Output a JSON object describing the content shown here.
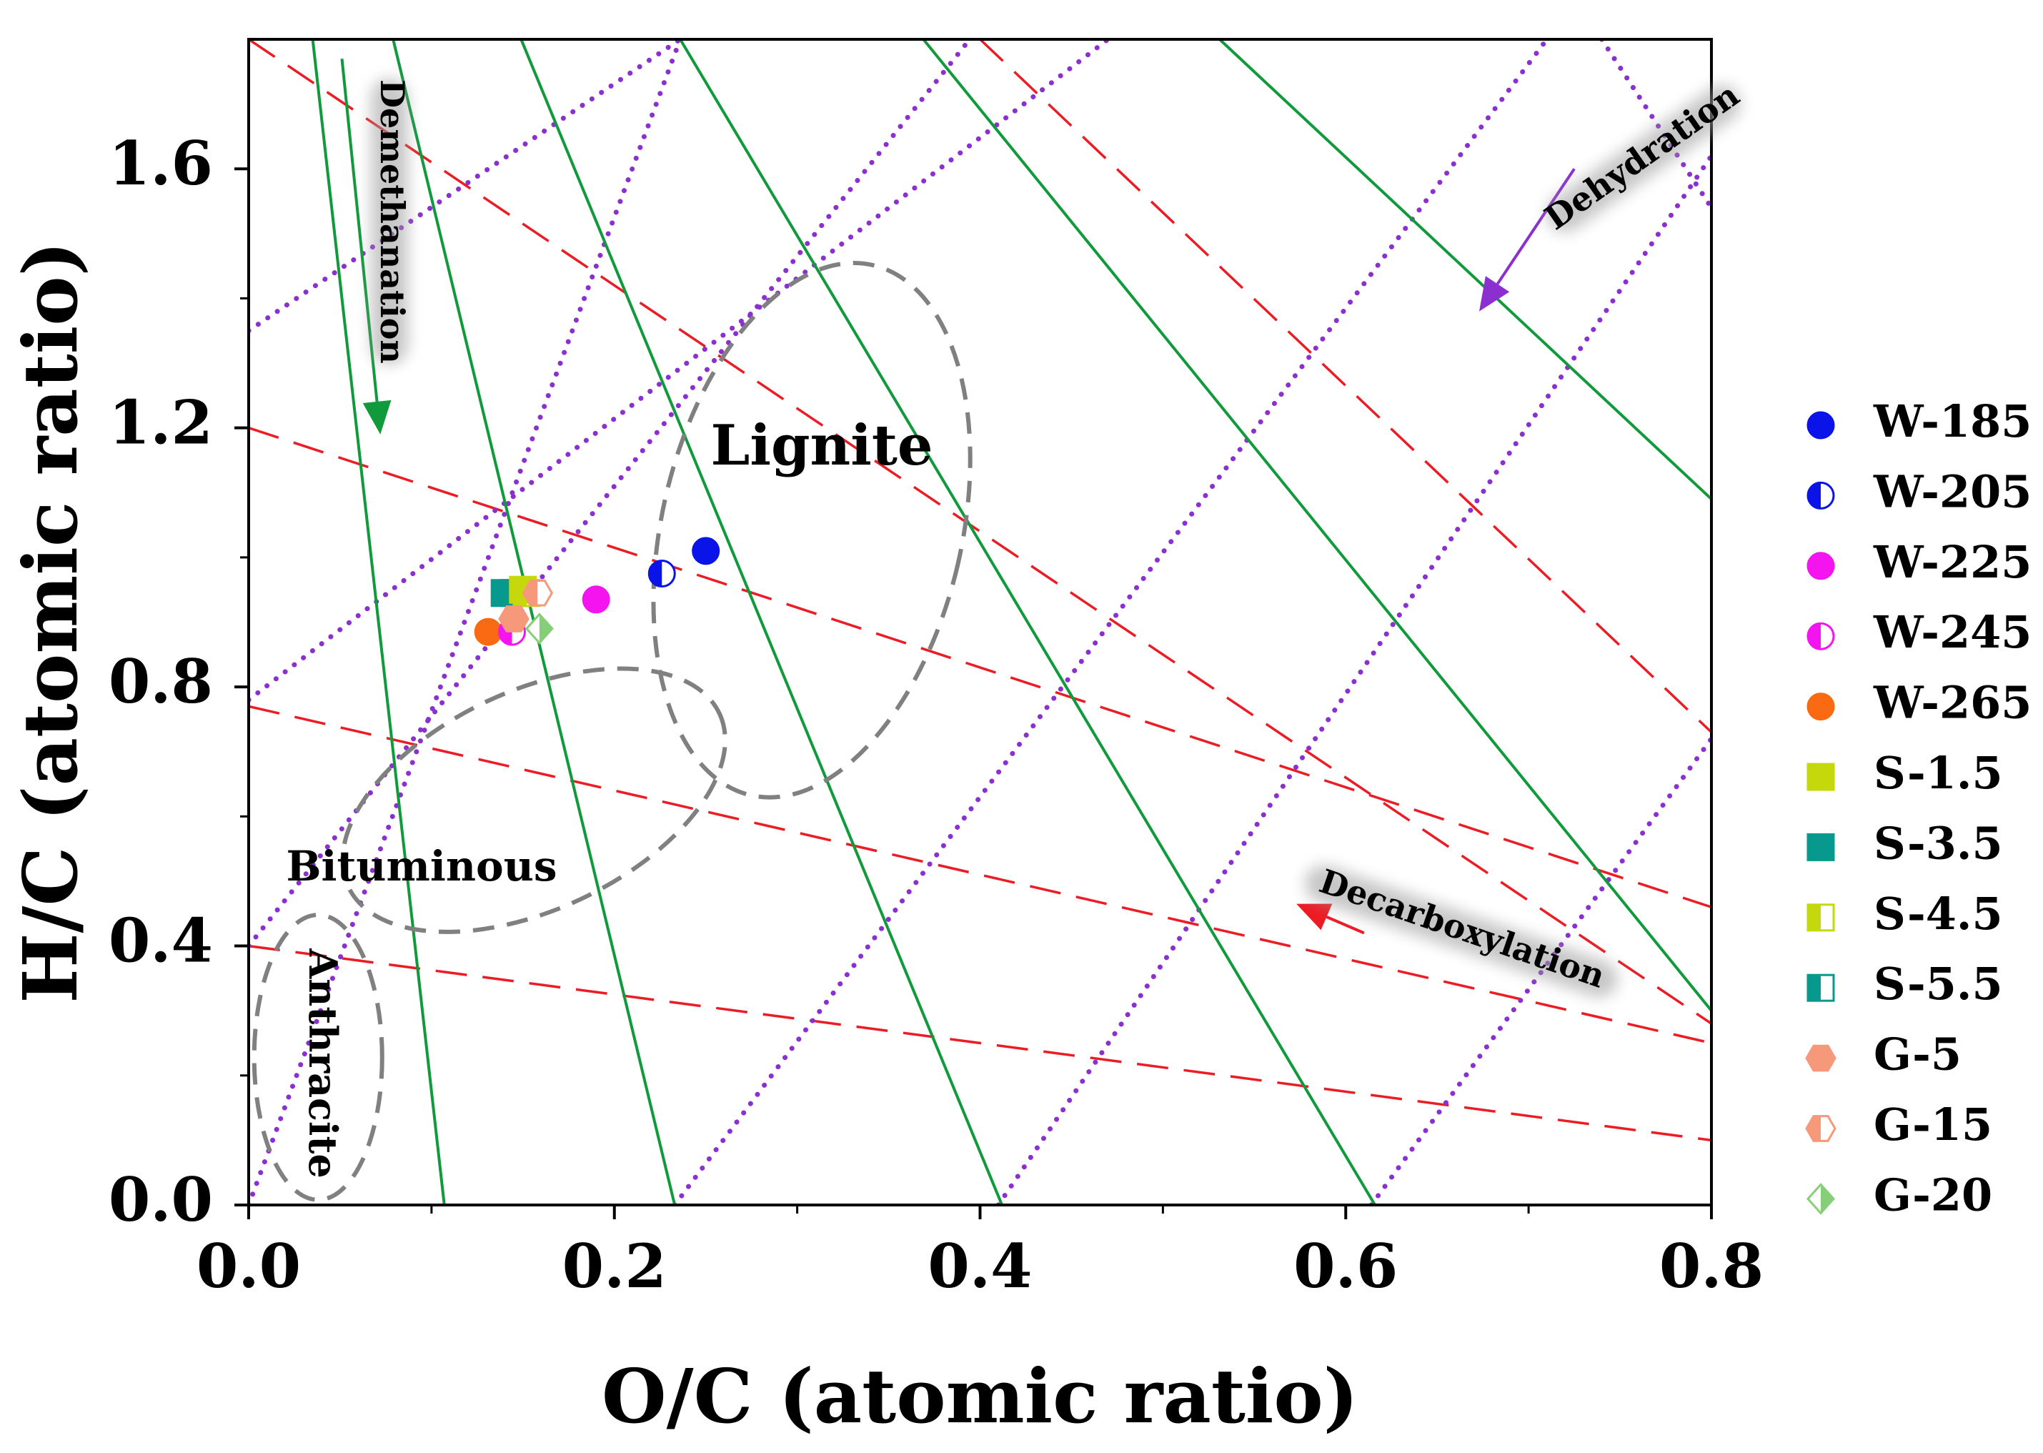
{
  "chart_data": {
    "type": "scatter",
    "title": "",
    "xlabel": "O/C (atomic ratio)",
    "ylabel": "H/C (atomic ratio)",
    "xlim": [
      0.0,
      0.8
    ],
    "ylim": [
      0.0,
      1.8
    ],
    "xticks": [
      "0.0",
      "0.2",
      "0.4",
      "0.6",
      "0.8"
    ],
    "yticks": [
      "0.0",
      "0.4",
      "0.8",
      "1.2",
      "1.6"
    ],
    "xtick_values": [
      0.0,
      0.2,
      0.4,
      0.6,
      0.8
    ],
    "ytick_values": [
      0.0,
      0.4,
      0.8,
      1.2,
      1.6
    ],
    "xminor": [
      0.1,
      0.3,
      0.5,
      0.7
    ],
    "yminor": [
      0.2,
      0.6,
      1.0,
      1.4
    ],
    "grid": false,
    "legend_position": "right",
    "series": [
      {
        "name": "W-185",
        "marker": "circle",
        "fill": "full",
        "color": "#0a14e8",
        "x": 0.25,
        "y": 1.01
      },
      {
        "name": "W-205",
        "marker": "circle",
        "fill": "left",
        "color": "#0a14e8",
        "x": 0.226,
        "y": 0.975
      },
      {
        "name": "W-225",
        "marker": "circle",
        "fill": "full",
        "color": "#f414f0",
        "x": 0.19,
        "y": 0.935
      },
      {
        "name": "W-245",
        "marker": "circle",
        "fill": "left",
        "color": "#f414f0",
        "x": 0.144,
        "y": 0.885
      },
      {
        "name": "W-265",
        "marker": "circle",
        "fill": "full",
        "color": "#f96a12",
        "x": 0.131,
        "y": 0.885
      },
      {
        "name": "S-1.5",
        "marker": "square",
        "fill": "full",
        "color": "#c4d80c",
        "x": 0.15,
        "y": 0.95
      },
      {
        "name": "S-3.5",
        "marker": "square",
        "fill": "full",
        "color": "#08998e",
        "x": 0.14,
        "y": 0.945
      },
      {
        "name": "S-4.5",
        "marker": "square",
        "fill": "left",
        "color": "#c4d80c",
        "x": 0.152,
        "y": 0.945
      },
      {
        "name": "S-5.5",
        "marker": "square",
        "fill": "left",
        "color": "#08998e",
        "x": 0.145,
        "y": 0.945
      },
      {
        "name": "G-5",
        "marker": "hexagon",
        "fill": "full",
        "color": "#f6987a",
        "x": 0.145,
        "y": 0.905
      },
      {
        "name": "G-15",
        "marker": "hexagon",
        "fill": "left",
        "color": "#f6987a",
        "x": 0.158,
        "y": 0.945
      },
      {
        "name": "G-20",
        "marker": "diamond",
        "fill": "right",
        "color": "#86cf78",
        "x": 0.159,
        "y": 0.89
      }
    ],
    "overlay_colors": {
      "solid": "#119a3c",
      "dashed": "#ec1c24",
      "dotted": "#8b2fd0",
      "ellipse": "#808080"
    },
    "green_lines": [
      {
        "x0": 0.035,
        "y0": 1.8,
        "x1": 0.107,
        "y1": 0.0
      },
      {
        "x0": 0.079,
        "y0": 1.8,
        "x1": 0.233,
        "y1": 0.0
      },
      {
        "x0": 0.149,
        "y0": 1.8,
        "x1": 0.412,
        "y1": 0.0
      },
      {
        "x0": 0.236,
        "y0": 1.8,
        "x1": 0.616,
        "y1": 0.0
      },
      {
        "x0": 0.369,
        "y0": 1.8,
        "x1": 0.8,
        "y1": 0.3
      },
      {
        "x0": 0.531,
        "y0": 1.8,
        "x1": 0.8,
        "y1": 1.09
      }
    ],
    "red_lines": [
      {
        "x0": 0.0,
        "y0": 1.8,
        "x1": 0.8,
        "y1": 0.28
      },
      {
        "x0": 0.0,
        "y0": 1.2,
        "x1": 0.8,
        "y1": 0.46
      },
      {
        "x0": 0.0,
        "y0": 0.77,
        "x1": 0.8,
        "y1": 0.25
      },
      {
        "x0": 0.0,
        "y0": 0.4,
        "x1": 0.8,
        "y1": 0.1
      },
      {
        "x0": 0.4,
        "y0": 1.8,
        "x1": 0.8,
        "y1": 0.73
      }
    ],
    "purple_lines": [
      {
        "x0": 0.0,
        "y0": 0.0,
        "x1": 0.236,
        "y1": 1.8
      },
      {
        "x0": 0.0,
        "y0": 0.4,
        "x1": 0.4,
        "y1": 1.82
      },
      {
        "x0": 0.0,
        "y0": 0.78,
        "x1": 0.47,
        "y1": 1.8
      },
      {
        "x0": 0.0,
        "y0": 1.35,
        "x1": 0.236,
        "y1": 1.8
      },
      {
        "x0": 0.233,
        "y0": 0.0,
        "x1": 0.71,
        "y1": 1.8
      },
      {
        "x0": 0.41,
        "y0": 0.0,
        "x1": 0.8,
        "y1": 1.62
      },
      {
        "x0": 0.614,
        "y0": 0.0,
        "x1": 0.8,
        "y1": 0.72
      },
      {
        "x0": 0.74,
        "y0": 1.8,
        "x1": 0.8,
        "y1": 1.54
      }
    ],
    "regions": [
      {
        "label": "Lignite",
        "cx": 0.308,
        "cy": 1.042,
        "rx": 0.082,
        "ry": 0.42,
        "angle": 13
      },
      {
        "label": "Bituminous",
        "cx": 0.156,
        "cy": 0.625,
        "rx": 0.112,
        "ry": 0.169,
        "angle": -25
      },
      {
        "label": "Anthracite",
        "cx": 0.038,
        "cy": 0.228,
        "rx": 0.035,
        "ry": 0.22,
        "angle": 0
      }
    ],
    "annotations": [
      {
        "text": "Demethanation",
        "kind": "arrow",
        "color": "#119a3c",
        "x0": 0.051,
        "y0": 1.77,
        "x1": 0.072,
        "y1": 1.19
      },
      {
        "text": "Dehydration",
        "kind": "arrow",
        "color": "#8b2fd0",
        "x0": 0.725,
        "y0": 1.6,
        "x1": 0.673,
        "y1": 1.38
      },
      {
        "text": "Decarboxylation",
        "kind": "arrow",
        "color": "#ec1c24",
        "x0": 0.61,
        "y0": 0.42,
        "x1": 0.573,
        "y1": 0.465
      }
    ]
  }
}
